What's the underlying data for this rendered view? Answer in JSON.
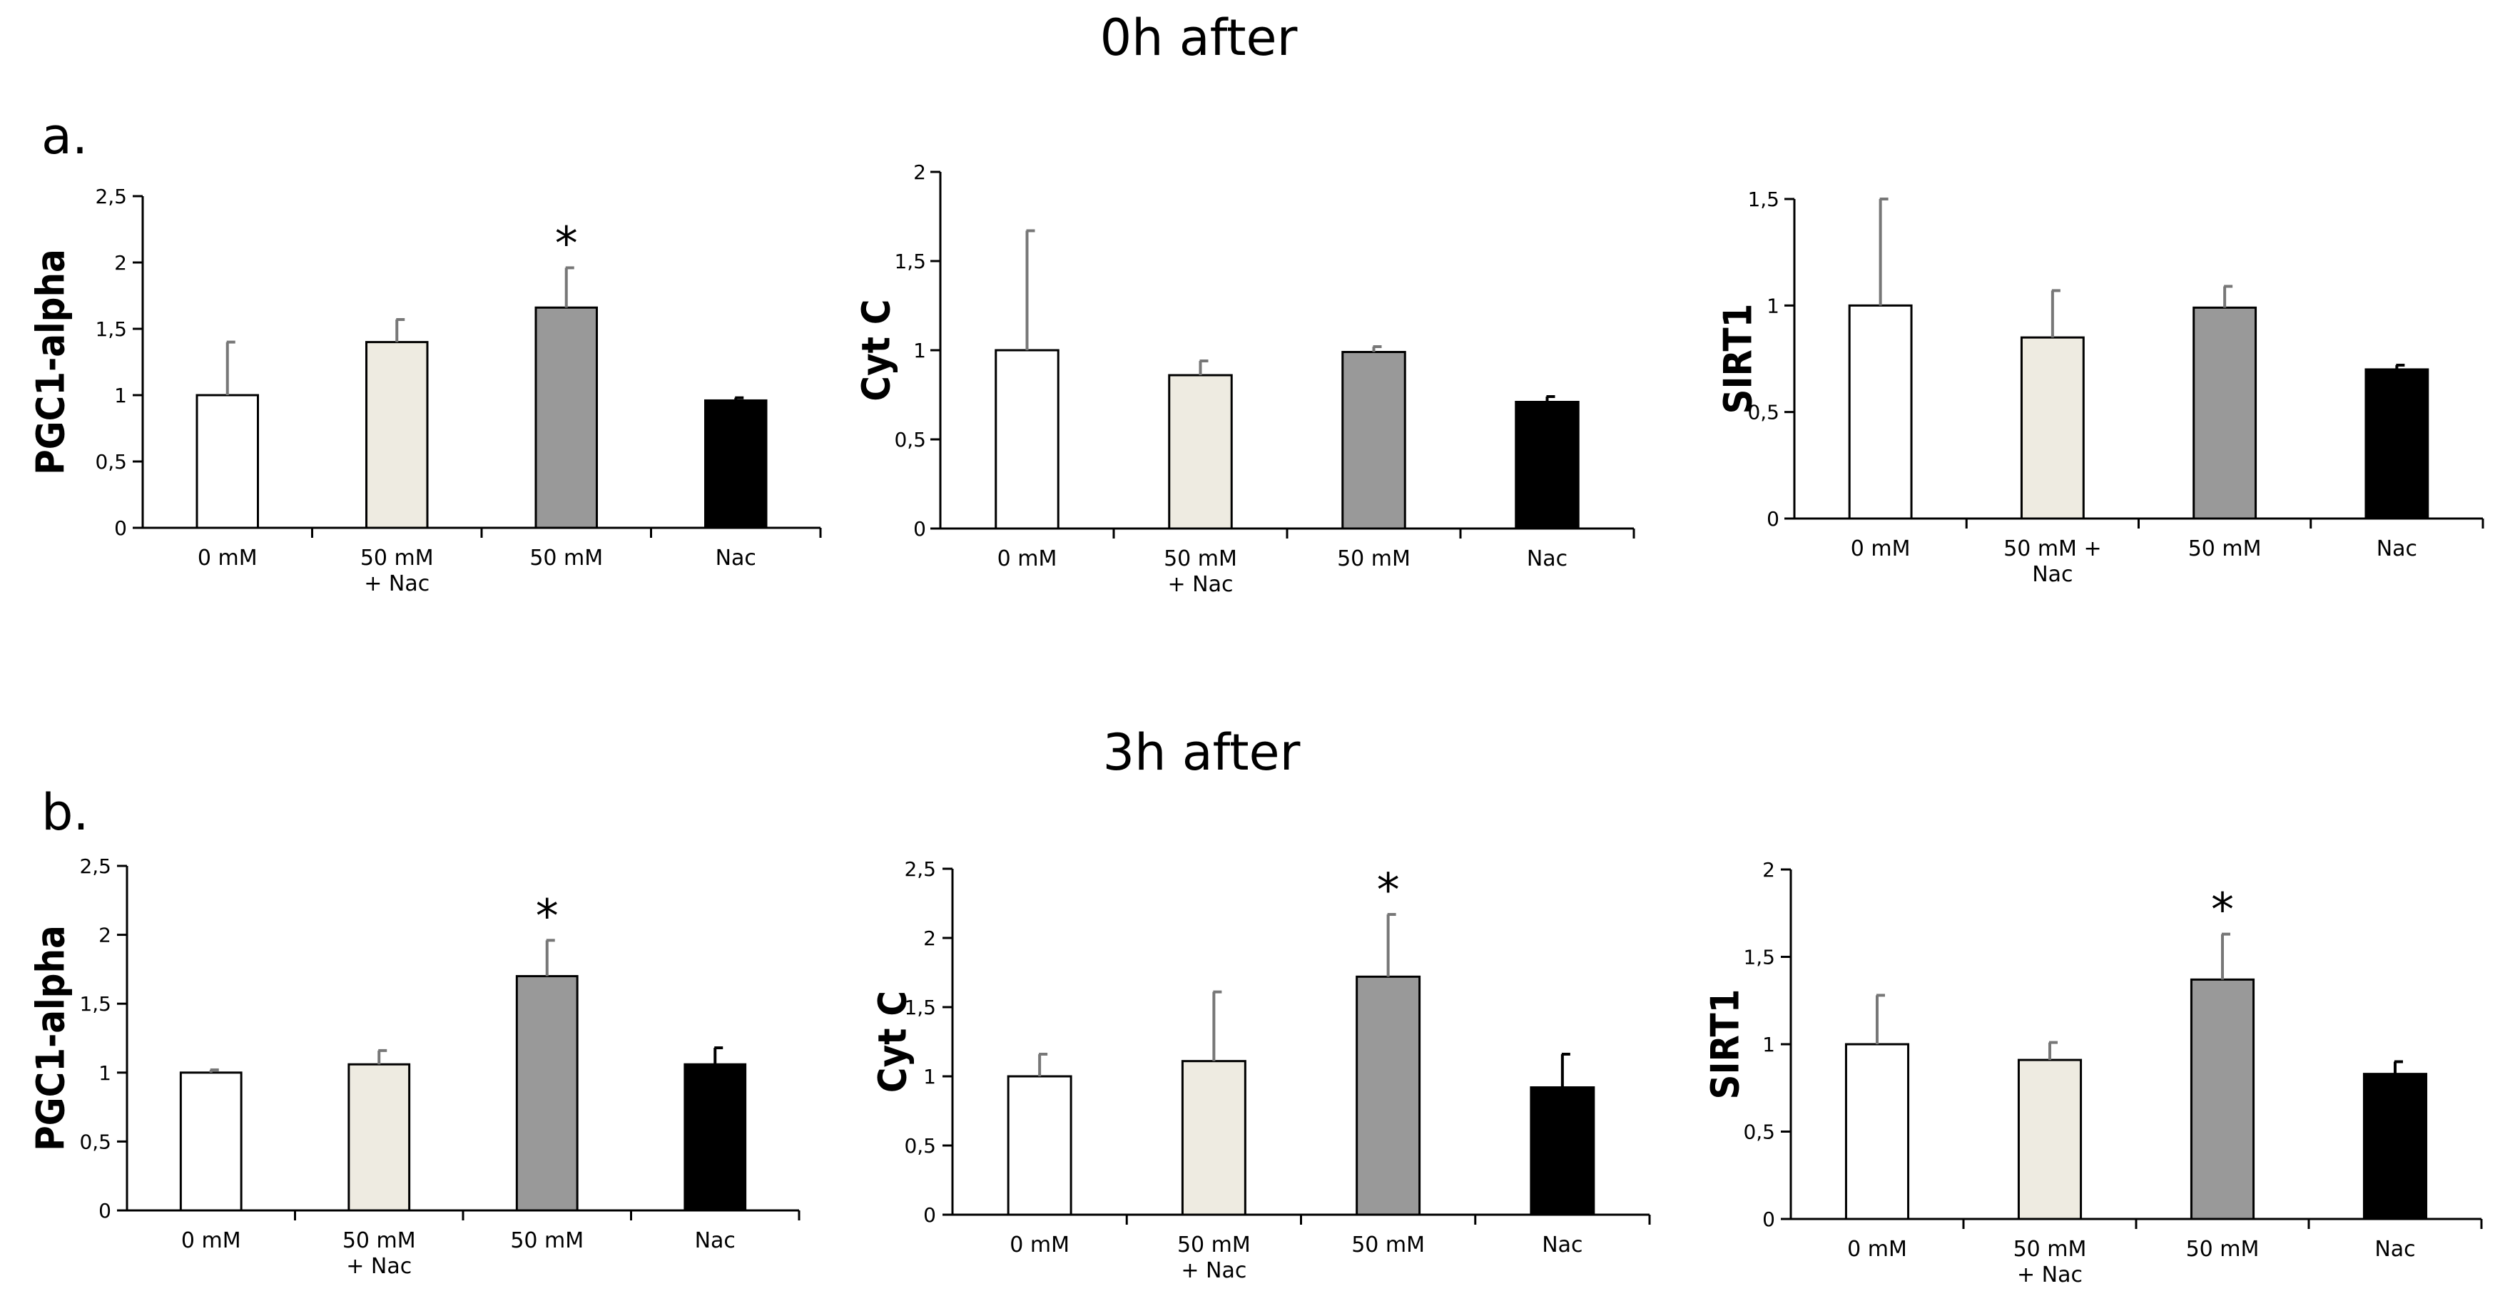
{
  "figure": {
    "titles": {
      "top": "0h after",
      "bottom": "3h after"
    },
    "panel_labels": {
      "a": "a.",
      "b": "b."
    }
  },
  "colors": {
    "0 mM": "#ffffff",
    "50 mM + Nac": "#eeebe1",
    "50 mM": "#999999",
    "Nac": "#000000",
    "axis": "#000000",
    "error_bar_grey": "#777777",
    "error_bar_black": "#000000"
  },
  "chart_data": [
    {
      "id": "a1",
      "type": "bar",
      "title": "",
      "xlabel": "",
      "ylabel": "PGC1-alpha",
      "ylim": [
        0,
        2.5
      ],
      "yticks": [
        "0",
        "0,5",
        "1",
        "1,5",
        "2",
        "2,5"
      ],
      "categories": [
        [
          "0 mM"
        ],
        [
          "50 mM",
          "+ Nac"
        ],
        [
          "50 mM"
        ],
        [
          "Nac"
        ]
      ],
      "values": [
        1.0,
        1.4,
        1.66,
        0.96
      ],
      "errors": [
        0.4,
        0.17,
        0.3,
        0.02
      ],
      "significance": [
        "",
        "",
        "*",
        ""
      ]
    },
    {
      "id": "a2",
      "type": "bar",
      "title": "",
      "xlabel": "",
      "ylabel": "Cyt C",
      "ylim": [
        0,
        2
      ],
      "yticks": [
        "0",
        "0,5",
        "1",
        "1,5",
        "2"
      ],
      "categories": [
        [
          "0 mM"
        ],
        [
          "50 mM",
          "+ Nac"
        ],
        [
          "50 mM"
        ],
        [
          "Nac"
        ]
      ],
      "values": [
        1.0,
        0.86,
        0.99,
        0.71
      ],
      "errors": [
        0.67,
        0.08,
        0.03,
        0.03
      ],
      "significance": [
        "",
        "",
        "",
        ""
      ]
    },
    {
      "id": "a3",
      "type": "bar",
      "title": "",
      "xlabel": "",
      "ylabel": "SIRT1",
      "ylim": [
        0,
        1.5
      ],
      "yticks": [
        "0",
        "0,5",
        "1",
        "1,5"
      ],
      "categories": [
        [
          "0 mM"
        ],
        [
          "50 mM +",
          "Nac"
        ],
        [
          "50 mM"
        ],
        [
          "Nac"
        ]
      ],
      "values": [
        1.0,
        0.85,
        0.99,
        0.7
      ],
      "errors": [
        0.5,
        0.22,
        0.1,
        0.02
      ],
      "significance": [
        "",
        "",
        "",
        ""
      ]
    },
    {
      "id": "b1",
      "type": "bar",
      "title": "",
      "xlabel": "",
      "ylabel": "PGC1-alpha",
      "ylim": [
        0,
        2.5
      ],
      "yticks": [
        "0",
        "0,5",
        "1",
        "1,5",
        "2",
        "2,5"
      ],
      "categories": [
        [
          "0 mM"
        ],
        [
          "50 mM",
          "+ Nac"
        ],
        [
          "50 mM"
        ],
        [
          "Nac"
        ]
      ],
      "values": [
        1.0,
        1.06,
        1.7,
        1.06
      ],
      "errors": [
        0.02,
        0.1,
        0.26,
        0.12
      ],
      "significance": [
        "",
        "",
        "*",
        ""
      ]
    },
    {
      "id": "b2",
      "type": "bar",
      "title": "",
      "xlabel": "",
      "ylabel": "Cyt C",
      "ylim": [
        0,
        2.5
      ],
      "yticks": [
        "0",
        "0,5",
        "1",
        "1,5",
        "2",
        "2,5"
      ],
      "categories": [
        [
          "0 mM"
        ],
        [
          "50 mM",
          "+ Nac"
        ],
        [
          "50 mM"
        ],
        [
          "Nac"
        ]
      ],
      "values": [
        1.0,
        1.11,
        1.72,
        0.92
      ],
      "errors": [
        0.16,
        0.5,
        0.45,
        0.24
      ],
      "significance": [
        "",
        "",
        "*",
        ""
      ]
    },
    {
      "id": "b3",
      "type": "bar",
      "title": "",
      "xlabel": "",
      "ylabel": "SIRT1",
      "ylim": [
        0,
        2
      ],
      "yticks": [
        "0",
        "0,5",
        "1",
        "1,5",
        "2"
      ],
      "categories": [
        [
          "0 mM"
        ],
        [
          "50 mM",
          "+ Nac"
        ],
        [
          "50 mM"
        ],
        [
          "Nac"
        ]
      ],
      "values": [
        1.0,
        0.91,
        1.37,
        0.83
      ],
      "errors": [
        0.28,
        0.1,
        0.26,
        0.07
      ],
      "significance": [
        "",
        "",
        "*",
        ""
      ]
    }
  ]
}
